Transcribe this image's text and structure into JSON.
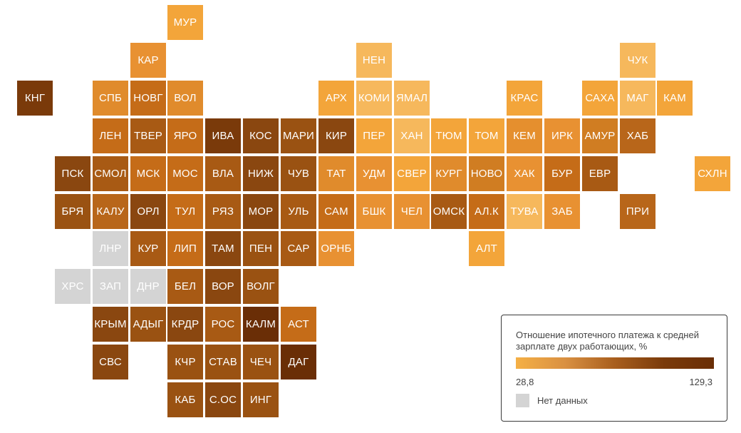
{
  "legend": {
    "title": "Отношение ипотечного платежа к средней зарплате двух работающих, %",
    "min_label": "28,8",
    "max_label": "129,3",
    "nodata_label": "Нет данных",
    "nodata_color": "#d4d4d4"
  },
  "regions": [
    {
      "label": "МУР",
      "color": "#f3a53a"
    },
    {
      "label": "КАР",
      "color": "#e89132"
    },
    {
      "label": "НЕН",
      "color": "#f6b85c"
    },
    {
      "label": "ЧУК",
      "color": "#f6b85c"
    },
    {
      "label": "КНГ",
      "color": "#7a3a0a"
    },
    {
      "label": "СПБ",
      "color": "#e08b2c"
    },
    {
      "label": "НОВГ",
      "color": "#c56c18"
    },
    {
      "label": "ВОЛ",
      "color": "#e08b2c"
    },
    {
      "label": "АРХ",
      "color": "#f3a53a"
    },
    {
      "label": "КОМИ",
      "color": "#f6b85c"
    },
    {
      "label": "ЯМАЛ",
      "color": "#f6b85c"
    },
    {
      "label": "КРАС",
      "color": "#f3a53a"
    },
    {
      "label": "САХА",
      "color": "#f3a53a"
    },
    {
      "label": "МАГ",
      "color": "#f6b85c"
    },
    {
      "label": "КАМ",
      "color": "#f3a53a"
    },
    {
      "label": "ЛЕН",
      "color": "#c56c18"
    },
    {
      "label": "ТВЕР",
      "color": "#a85a14"
    },
    {
      "label": "ЯРО",
      "color": "#c56c18"
    },
    {
      "label": "ИВА",
      "color": "#7a3a0a"
    },
    {
      "label": "КОС",
      "color": "#8a4710"
    },
    {
      "label": "МАРИ",
      "color": "#9a5212"
    },
    {
      "label": "КИР",
      "color": "#8a4710"
    },
    {
      "label": "ПЕР",
      "color": "#f3a53a"
    },
    {
      "label": "ХАН",
      "color": "#f6b85c"
    },
    {
      "label": "ТЮМ",
      "color": "#f3a53a"
    },
    {
      "label": "ТОМ",
      "color": "#f3a53a"
    },
    {
      "label": "КЕМ",
      "color": "#e58f2e"
    },
    {
      "label": "ИРК",
      "color": "#e89132"
    },
    {
      "label": "АМУР",
      "color": "#d07d22"
    },
    {
      "label": "ХАБ",
      "color": "#b8661a"
    },
    {
      "label": "ПСК",
      "color": "#8a4710"
    },
    {
      "label": "СМОЛ",
      "color": "#a85a14"
    },
    {
      "label": "МСК",
      "color": "#c56c18"
    },
    {
      "label": "МОС",
      "color": "#c56c18"
    },
    {
      "label": "ВЛА",
      "color": "#a85a14"
    },
    {
      "label": "НИЖ",
      "color": "#8a4710"
    },
    {
      "label": "ЧУВ",
      "color": "#9a5212"
    },
    {
      "label": "ТАТ",
      "color": "#e08b2c"
    },
    {
      "label": "УДМ",
      "color": "#e89132"
    },
    {
      "label": "СВЕР",
      "color": "#f3a53a"
    },
    {
      "label": "КУРГ",
      "color": "#e08b2c"
    },
    {
      "label": "НОВО",
      "color": "#d07d22"
    },
    {
      "label": "ХАК",
      "color": "#e89132"
    },
    {
      "label": "БУР",
      "color": "#c56c18"
    },
    {
      "label": "ЕВР",
      "color": "#a85a14"
    },
    {
      "label": "СХЛН",
      "color": "#f3a53a"
    },
    {
      "label": "БРЯ",
      "color": "#9a5212"
    },
    {
      "label": "КАЛУ",
      "color": "#b8661a"
    },
    {
      "label": "ОРЛ",
      "color": "#8a4710"
    },
    {
      "label": "ТУЛ",
      "color": "#c56c18"
    },
    {
      "label": "РЯЗ",
      "color": "#a85a14"
    },
    {
      "label": "МОР",
      "color": "#8a4710"
    },
    {
      "label": "УЛЬ",
      "color": "#a85a14"
    },
    {
      "label": "САМ",
      "color": "#c56c18"
    },
    {
      "label": "БШК",
      "color": "#e89132"
    },
    {
      "label": "ЧЕЛ",
      "color": "#e89132"
    },
    {
      "label": "ОМСК",
      "color": "#a85a14"
    },
    {
      "label": "АЛ.К",
      "color": "#c56c18"
    },
    {
      "label": "ТУВА",
      "color": "#f6b85c"
    },
    {
      "label": "ЗАБ",
      "color": "#e89132"
    },
    {
      "label": "ПРИ",
      "color": "#b8661a"
    },
    {
      "label": "ЛНР",
      "color": "#d4d4d4"
    },
    {
      "label": "КУР",
      "color": "#a85a14"
    },
    {
      "label": "ЛИП",
      "color": "#c56c18"
    },
    {
      "label": "ТАМ",
      "color": "#8a4710"
    },
    {
      "label": "ПЕН",
      "color": "#9a5212"
    },
    {
      "label": "САР",
      "color": "#a85a14"
    },
    {
      "label": "ОРНБ",
      "color": "#e89132"
    },
    {
      "label": "АЛТ",
      "color": "#f3a53a"
    },
    {
      "label": "ХРС",
      "color": "#d4d4d4"
    },
    {
      "label": "ЗАП",
      "color": "#d4d4d4"
    },
    {
      "label": "ДНР",
      "color": "#d4d4d4"
    },
    {
      "label": "БЕЛ",
      "color": "#a85a14"
    },
    {
      "label": "ВОР",
      "color": "#8a4710"
    },
    {
      "label": "ВОЛГ",
      "color": "#9a5212"
    },
    {
      "label": "КРЫМ",
      "color": "#8a4710"
    },
    {
      "label": "АДЫГ",
      "color": "#9a5212"
    },
    {
      "label": "КРДР",
      "color": "#8a4710"
    },
    {
      "label": "РОС",
      "color": "#a85a14"
    },
    {
      "label": "КАЛМ",
      "color": "#6a2e06"
    },
    {
      "label": "АСТ",
      "color": "#c56c18"
    },
    {
      "label": "СВС",
      "color": "#8a4710"
    },
    {
      "label": "КЧР",
      "color": "#9a5212"
    },
    {
      "label": "СТАВ",
      "color": "#9a5212"
    },
    {
      "label": "ЧЕЧ",
      "color": "#9a5212"
    },
    {
      "label": "ДАГ",
      "color": "#6a2e06"
    },
    {
      "label": "КАБ",
      "color": "#9a5212"
    },
    {
      "label": "С.ОС",
      "color": "#8a4710"
    },
    {
      "label": "ИНГ",
      "color": "#9a5212"
    }
  ]
}
